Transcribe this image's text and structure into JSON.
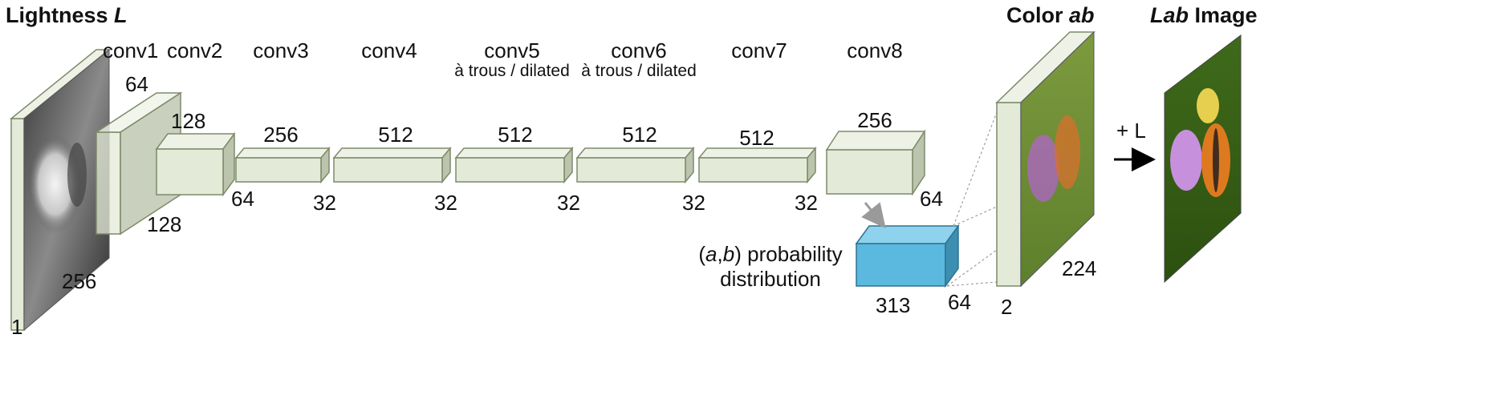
{
  "input": {
    "title_prefix": "Lightness ",
    "title_var": "L",
    "depth": "1",
    "size": "256"
  },
  "conv_layers": [
    {
      "name": "conv1",
      "sub": "",
      "channels": "64",
      "size": "128"
    },
    {
      "name": "conv2",
      "sub": "",
      "channels": "128",
      "size": "64"
    },
    {
      "name": "conv3",
      "sub": "",
      "channels": "256",
      "size": "32"
    },
    {
      "name": "conv4",
      "sub": "",
      "channels": "512",
      "size": "32"
    },
    {
      "name": "conv5",
      "sub": "à trous / dilated",
      "channels": "512",
      "size": "32"
    },
    {
      "name": "conv6",
      "sub": "à trous / dilated",
      "channels": "512",
      "size": "32"
    },
    {
      "name": "conv7",
      "sub": "",
      "channels": "512",
      "size": "32"
    },
    {
      "name": "conv8",
      "sub": "",
      "channels": "256",
      "size": "64"
    }
  ],
  "probability": {
    "label_ab_a": "a",
    "label_ab_b": "b",
    "label_rest": " probability",
    "label_line2": "distribution",
    "channels": "313",
    "size": "64"
  },
  "color_output": {
    "title_prefix": "Color ",
    "title_var": "ab",
    "depth": "2",
    "size": "224"
  },
  "lab_output": {
    "title_var": "Lab",
    "title_rest": " Image",
    "op_label": "+ L"
  },
  "colors": {
    "block_front": "#e4ead8",
    "block_top": "#eef2e6",
    "block_side": "#bcc4ae",
    "block_edge": "#7d8a6a",
    "prob_front": "#5bb8de",
    "prob_top": "#8fd2ee",
    "prob_side": "#3c8fb1"
  }
}
